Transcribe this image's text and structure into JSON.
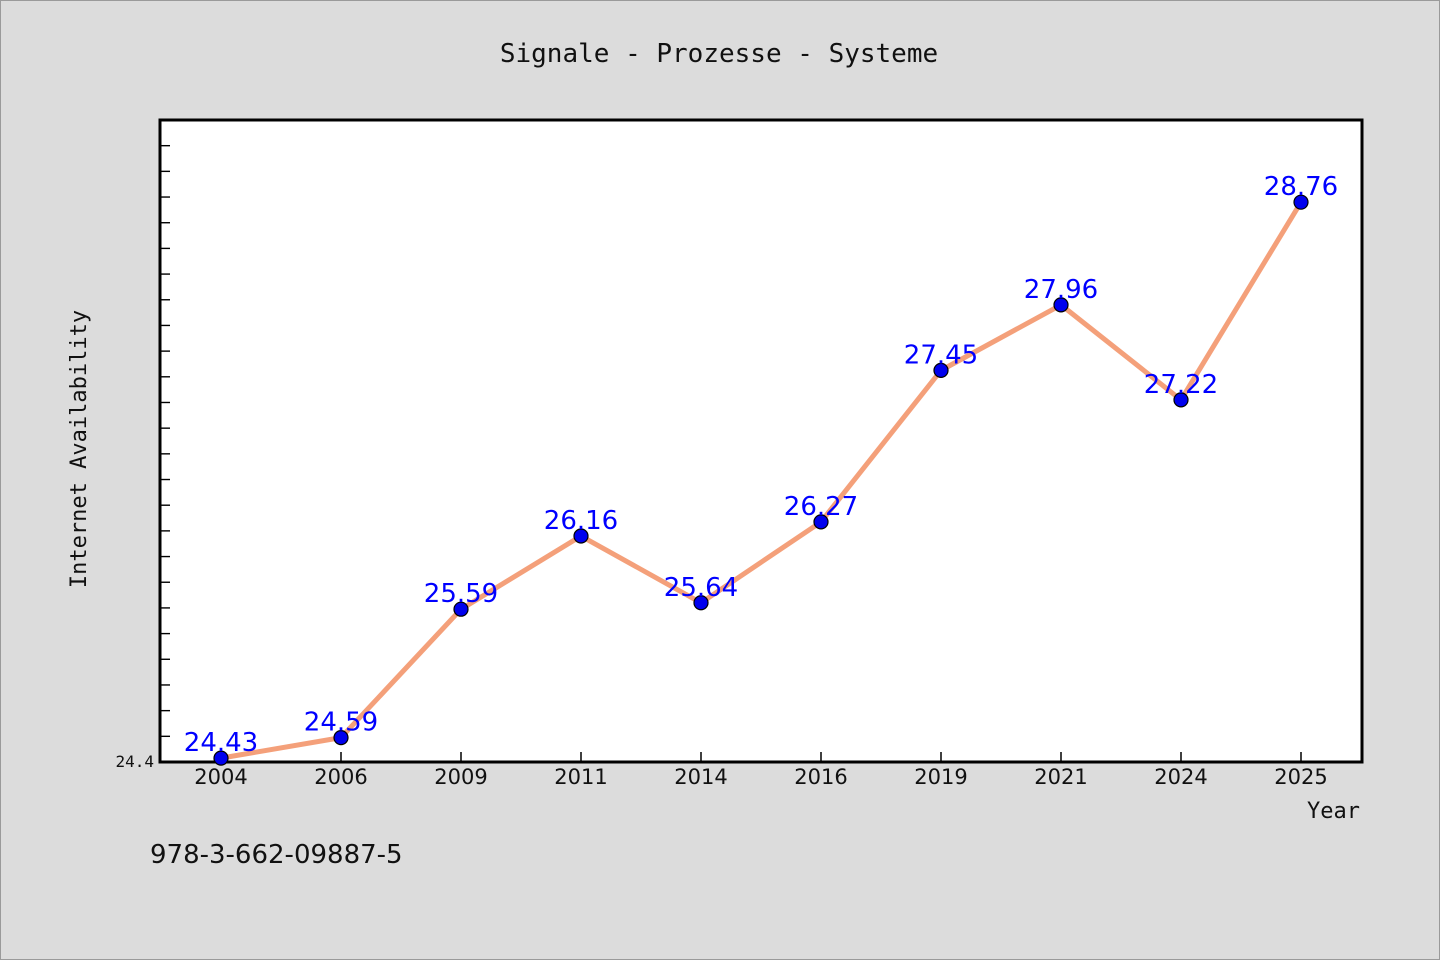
{
  "chart_data": {
    "type": "line",
    "title": "Signale - Prozesse - Systeme",
    "xlabel": "Year",
    "ylabel": "Internet Availability",
    "categories": [
      "2004",
      "2006",
      "2009",
      "2011",
      "2014",
      "2016",
      "2019",
      "2021",
      "2024",
      "2025"
    ],
    "series": [
      {
        "values": [
          24.43,
          24.59,
          25.59,
          26.16,
          25.64,
          26.27,
          27.45,
          27.96,
          27.22,
          28.76
        ],
        "labels": [
          "24.43",
          "24.59",
          "25.59",
          "26.16",
          "25.64",
          "26.27",
          "27.45",
          "27.96",
          "27.22",
          "28.76"
        ],
        "line_color": "#f4a07a",
        "marker_color": "#0000ee",
        "label_color": "#0000ff"
      }
    ],
    "ylim": [
      24.4,
      29.4
    ],
    "y_tick_labels": [
      "24.4"
    ],
    "grid": false,
    "legend": "none"
  },
  "footer": {
    "isbn": "978-3-662-09887-5"
  }
}
